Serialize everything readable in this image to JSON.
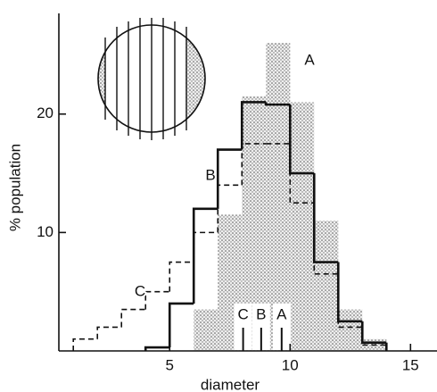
{
  "chart_data": {
    "type": "histogram",
    "x_label": "diameter",
    "y_label": "% population",
    "bins": [
      1,
      2,
      3,
      4,
      5,
      6,
      7,
      8,
      9,
      10,
      11,
      12,
      13,
      14
    ],
    "series": [
      {
        "name": "A",
        "style": "stipple",
        "color": "#111111",
        "values": [
          null,
          null,
          null,
          null,
          null,
          3.5,
          11.5,
          21.5,
          26,
          21,
          11,
          3.5,
          1
        ]
      },
      {
        "name": "B",
        "style": "solid",
        "color": "#111111",
        "values": [
          null,
          null,
          null,
          0.3,
          4,
          12,
          17,
          21,
          20.8,
          15,
          7.5,
          2.5,
          0.7
        ]
      },
      {
        "name": "C",
        "style": "dashed",
        "color": "#111111",
        "values": [
          1,
          2,
          3.5,
          5,
          7.5,
          10,
          14,
          17.5,
          17.5,
          12.5,
          6.5,
          2,
          0.5
        ]
      }
    ],
    "markers": [
      {
        "label": "C",
        "x": 8.05
      },
      {
        "label": "B",
        "x": 8.8
      },
      {
        "label": "A",
        "x": 9.65
      }
    ],
    "xlim": [
      0.4,
      16.1
    ],
    "ylim": [
      0,
      28.5
    ],
    "xticks": [
      5,
      10,
      15
    ],
    "yticks": [
      10,
      20
    ]
  }
}
